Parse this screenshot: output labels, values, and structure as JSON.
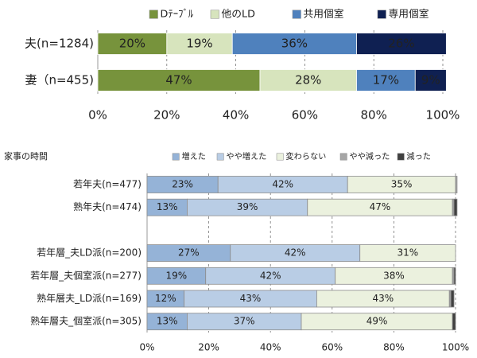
{
  "chart_data": [
    {
      "type": "stacked-bar-horizontal",
      "categories": [
        "夫(n=1284)",
        "妻（n=455)"
      ],
      "series": [
        {
          "name": "Dﾃｰﾌﾞﾙ",
          "color": "#77933c",
          "values": [
            20,
            47
          ],
          "value_labels": [
            "20%",
            "47%"
          ]
        },
        {
          "name": "他のLD",
          "color": "#d7e4bd",
          "values": [
            19,
            28
          ],
          "value_labels": [
            "19%",
            "28%"
          ]
        },
        {
          "name": "共用個室",
          "color": "#4f81bd",
          "values": [
            36,
            17
          ],
          "value_labels": [
            "36%",
            "17%"
          ]
        },
        {
          "name": "専用個室",
          "color": "#0f2052",
          "values": [
            26,
            9
          ],
          "value_labels": [
            "26%",
            "9%"
          ]
        }
      ],
      "xlim": [
        0,
        100
      ],
      "xticks": [
        {
          "value": 0,
          "label": "0%"
        },
        {
          "value": 20,
          "label": "20%"
        },
        {
          "value": 40,
          "label": "40%"
        },
        {
          "value": 60,
          "label": "60%"
        },
        {
          "value": 80,
          "label": "80%"
        },
        {
          "value": 100,
          "label": "100%"
        }
      ],
      "grid": true,
      "legend": "top"
    },
    {
      "type": "stacked-bar-horizontal",
      "title": "家事の時間",
      "categories": [
        "若年夫(n=477)",
        "熟年夫(n=474)",
        null,
        "若年層_夫LD派(n=200)",
        "若年層_夫個室派(n=277)",
        "熟年層夫_LD派(n=169)",
        "熟年層夫_個室派(n=305)"
      ],
      "series": [
        {
          "name": "増えた",
          "color": "#95b3d7",
          "values": [
            23,
            13,
            null,
            27,
            19,
            12,
            13
          ],
          "value_labels": [
            "23%",
            "13%",
            null,
            "27%",
            "19%",
            "12%",
            "13%"
          ]
        },
        {
          "name": "やや増えた",
          "color": "#b9cde5",
          "values": [
            42,
            39,
            null,
            42,
            42,
            43,
            37
          ],
          "value_labels": [
            "42%",
            "39%",
            null,
            "42%",
            "42%",
            "43%",
            "37%"
          ]
        },
        {
          "name": "変わらない",
          "color": "#ebf1de",
          "values": [
            35,
            47,
            null,
            31,
            38,
            43,
            49
          ],
          "value_labels": [
            "35%",
            "47%",
            null,
            "31%",
            "38%",
            "43%",
            "49%"
          ]
        },
        {
          "name": "やや減った",
          "color": "#a6a6a6",
          "values": [
            0.5,
            0.5,
            null,
            0,
            0.5,
            0.5,
            0
          ]
        },
        {
          "name": "減った",
          "color": "#404040",
          "values": [
            0,
            1,
            null,
            0,
            0.5,
            1,
            1
          ]
        }
      ],
      "xlim": [
        0,
        100
      ],
      "xticks": [
        {
          "value": 0,
          "label": "0%"
        },
        {
          "value": 20,
          "label": "20%"
        },
        {
          "value": 40,
          "label": "40%"
        },
        {
          "value": 60,
          "label": "60%"
        },
        {
          "value": 80,
          "label": "80%"
        },
        {
          "value": 100,
          "label": "100%"
        }
      ],
      "grid": true,
      "legend": "top"
    }
  ]
}
